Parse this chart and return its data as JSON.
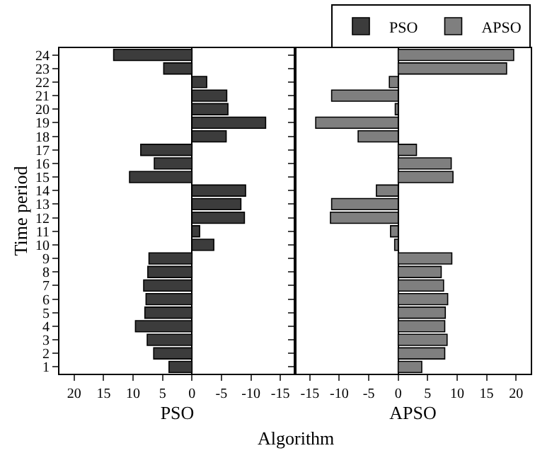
{
  "chart_data": [
    {
      "type": "bar",
      "orientation": "horizontal",
      "xlabel": "PSO",
      "ylabel": "Time period",
      "categories": [
        "24",
        "23",
        "22",
        "21",
        "20",
        "19",
        "18",
        "17",
        "16",
        "15",
        "14",
        "13",
        "12",
        "11",
        "10",
        "9",
        "8",
        "7",
        "6",
        "5",
        "4",
        "3",
        "2",
        "1"
      ],
      "xlim": [
        22.5,
        -17.5
      ],
      "xticks": [
        20,
        15,
        10,
        5,
        0,
        -5,
        -10,
        -15
      ],
      "legend": "top right",
      "series": [
        {
          "name": "PSO",
          "color": "#3c3c3c",
          "values": [
            13.3,
            4.8,
            -2.5,
            -5.9,
            -6.1,
            -12.5,
            -5.8,
            8.7,
            6.4,
            10.6,
            -9.1,
            -8.3,
            -8.9,
            -1.3,
            -3.7,
            7.3,
            7.5,
            8.2,
            7.8,
            8.0,
            9.6,
            7.6,
            6.5,
            3.9
          ]
        }
      ]
    },
    {
      "type": "bar",
      "orientation": "horizontal",
      "xlabel": "APSO",
      "categories": [
        "24",
        "23",
        "22",
        "21",
        "20",
        "19",
        "18",
        "17",
        "16",
        "15",
        "14",
        "13",
        "12",
        "11",
        "10",
        "9",
        "8",
        "7",
        "6",
        "5",
        "4",
        "3",
        "2",
        "1"
      ],
      "xlim": [
        -17.5,
        22.5
      ],
      "xticks": [
        -15,
        -10,
        -5,
        0,
        5,
        10,
        15,
        20
      ],
      "legend": "top right",
      "tick_labels": "x",
      "annotations": [
        "Algorithm"
      ],
      "series": [
        {
          "name": "APSO",
          "color": "#7f7f7f",
          "values": [
            19.6,
            18.4,
            -1.5,
            -11.3,
            -0.5,
            -14.0,
            -6.8,
            3.1,
            9.0,
            9.3,
            -3.7,
            -11.3,
            -11.5,
            -1.3,
            -0.6,
            9.1,
            7.3,
            7.7,
            8.4,
            8.0,
            7.9,
            8.3,
            7.9,
            4.0
          ]
        }
      ]
    }
  ]
}
